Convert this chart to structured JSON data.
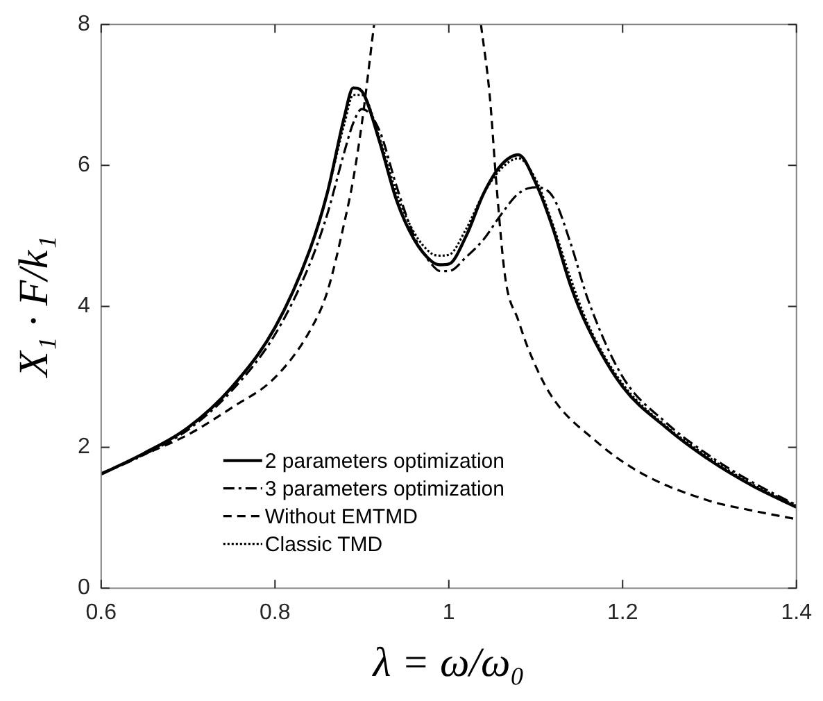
{
  "chart_data": {
    "type": "line",
    "xlabel": "λ = ω/ω₀",
    "ylabel": "X₁ · F/k₁",
    "x": [
      0.6,
      0.65,
      0.7,
      0.75,
      0.8,
      0.84,
      0.86,
      0.88,
      0.89,
      0.9,
      0.92,
      0.94,
      0.96,
      0.98,
      0.99,
      1.0,
      1.02,
      1.04,
      1.06,
      1.08,
      1.1,
      1.12,
      1.14,
      1.16,
      1.2,
      1.25,
      1.3,
      1.35,
      1.4
    ],
    "series": [
      {
        "name": "2 parameters optimization",
        "color": "#000000",
        "line_style": "solid",
        "values": [
          1.62,
          1.92,
          2.28,
          2.85,
          3.7,
          4.8,
          5.6,
          6.7,
          7.1,
          7.05,
          6.35,
          5.5,
          4.95,
          4.64,
          4.59,
          4.6,
          5.0,
          5.6,
          6.0,
          6.15,
          5.75,
          5.1,
          4.3,
          3.7,
          2.86,
          2.28,
          1.82,
          1.45,
          1.15
        ]
      },
      {
        "name": "3 parameters optimization",
        "color": "#000000",
        "line_style": "dashdot",
        "values": [
          1.62,
          1.9,
          2.25,
          2.8,
          3.6,
          4.6,
          5.3,
          6.2,
          6.6,
          6.8,
          6.5,
          5.7,
          5.0,
          4.6,
          4.5,
          4.5,
          4.7,
          4.95,
          5.3,
          5.6,
          5.69,
          5.55,
          4.9,
          4.1,
          3.0,
          2.35,
          1.88,
          1.5,
          1.18
        ]
      },
      {
        "name": "Without EMTMD",
        "color": "#000000",
        "line_style": "dashed",
        "x": [
          0.6,
          0.65,
          0.7,
          0.75,
          0.8,
          0.84,
          0.86,
          0.88,
          0.89,
          0.9,
          0.914,
          0.97,
          1.037,
          1.047,
          1.055,
          1.065,
          1.08,
          1.092,
          1.118,
          1.17,
          1.222,
          1.3,
          1.35,
          1.4
        ],
        "values": [
          1.63,
          1.9,
          2.18,
          2.56,
          2.99,
          3.65,
          4.2,
          5.2,
          5.8,
          6.6,
          8,
          null,
          8,
          7.0,
          5.7,
          4.4,
          3.8,
          3.38,
          2.73,
          2.08,
          1.63,
          1.24,
          1.1,
          0.98
        ]
      },
      {
        "name": "Classic TMD",
        "color": "#000000",
        "line_style": "dotted",
        "values": [
          1.62,
          1.92,
          2.28,
          2.85,
          3.7,
          4.8,
          5.6,
          6.6,
          7.0,
          7.0,
          6.4,
          5.6,
          5.05,
          4.75,
          4.72,
          4.73,
          5.1,
          5.6,
          5.95,
          6.1,
          5.8,
          5.15,
          4.4,
          3.75,
          2.9,
          2.3,
          1.85,
          1.47,
          1.17
        ]
      }
    ],
    "xlim": [
      0.6,
      1.4
    ],
    "xticks": [
      0.6,
      0.8,
      1,
      1.2,
      1.4
    ],
    "ylim": [
      0,
      8
    ],
    "yticks": [
      0,
      2,
      4,
      6,
      8
    ],
    "legend": "bottom",
    "marker": "none"
  }
}
